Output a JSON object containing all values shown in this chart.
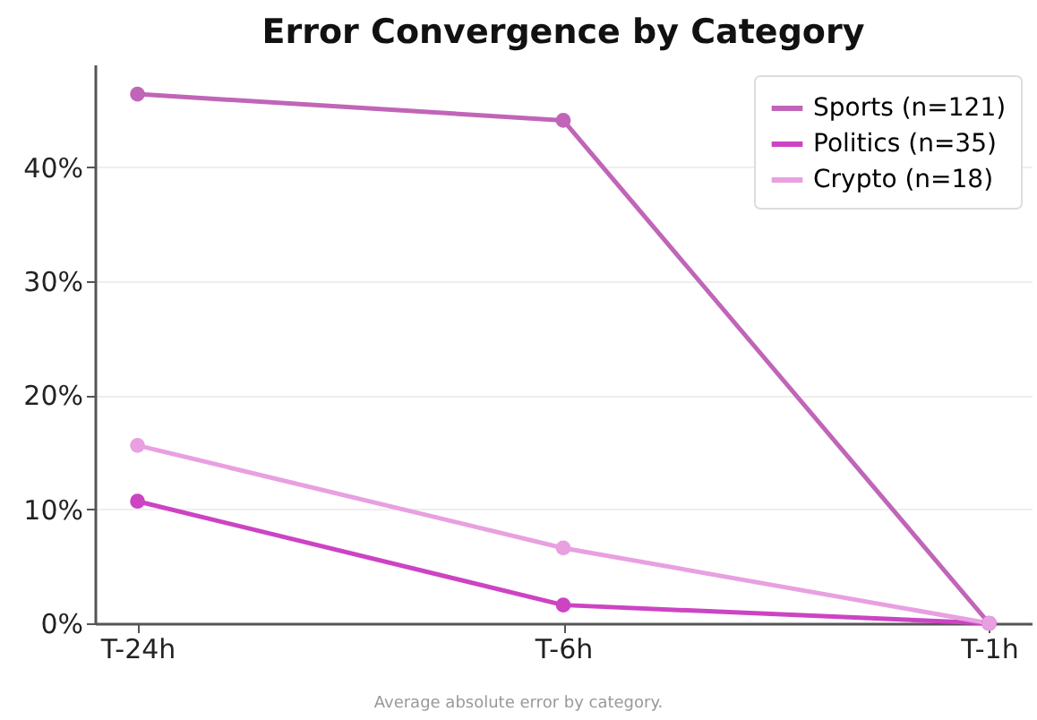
{
  "chart_data": {
    "type": "line",
    "title": "Error Convergence by Category",
    "annotations": [
      "Average absolute error by category."
    ],
    "categories": [
      "T-24h",
      "T-6h",
      "T-1h"
    ],
    "series": [
      {
        "name": "Sports (n=121)",
        "color": "#c065b8",
        "values": [
          46.4,
          44.1,
          0
        ]
      },
      {
        "name": "Politics (n=35)",
        "color": "#cc44c4",
        "values": [
          10.7,
          1.6,
          0
        ]
      },
      {
        "name": "Crypto (n=18)",
        "color": "#e8a0e0",
        "values": [
          15.6,
          6.6,
          0
        ]
      }
    ],
    "ylim": [
      0,
      49
    ],
    "yticks": [
      {
        "value": 0,
        "label": "0%"
      },
      {
        "value": 10,
        "label": "10%"
      },
      {
        "value": 20,
        "label": "20%"
      },
      {
        "value": 30,
        "label": "30%"
      },
      {
        "value": 40,
        "label": "40%"
      }
    ],
    "grid": "y",
    "legend": "top right",
    "marker": "circle",
    "line_style": "solid"
  }
}
